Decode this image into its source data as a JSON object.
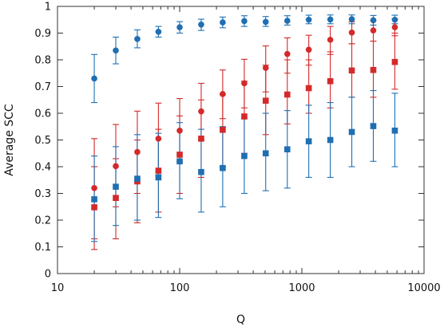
{
  "chart_data": {
    "type": "scatter",
    "xlabel": "Q",
    "ylabel": "Average SCC",
    "xscale": "log",
    "xlim": [
      10,
      10000
    ],
    "ylim": [
      0,
      1
    ],
    "x_ticks": [
      {
        "value": 10,
        "label": "10"
      },
      {
        "value": 100,
        "label": "100"
      },
      {
        "value": 1000,
        "label": "1000"
      },
      {
        "value": 10000,
        "label": "10000"
      }
    ],
    "y_ticks": [
      {
        "value": 0,
        "label": "0"
      },
      {
        "value": 0.1,
        "label": "0.1"
      },
      {
        "value": 0.2,
        "label": "0.2"
      },
      {
        "value": 0.3,
        "label": "0.3"
      },
      {
        "value": 0.4,
        "label": "0.4"
      },
      {
        "value": 0.5,
        "label": "0.5"
      },
      {
        "value": 0.6,
        "label": "0.6"
      },
      {
        "value": 0.7,
        "label": "0.7"
      },
      {
        "value": 0.8,
        "label": "0.8"
      },
      {
        "value": 0.9,
        "label": "0.9"
      },
      {
        "value": 1,
        "label": "1"
      }
    ],
    "grid": false,
    "x": [
      20,
      30,
      45,
      67,
      100,
      150,
      225,
      338,
      506,
      760,
      1139,
      1709,
      2563,
      3844,
      5767
    ],
    "series": [
      {
        "marker": "circle",
        "color": "#1f6fb2",
        "values": [
          0.73,
          0.835,
          0.878,
          0.905,
          0.922,
          0.932,
          0.94,
          0.945,
          0.942,
          0.946,
          0.95,
          0.951,
          0.952,
          0.948,
          0.95
        ],
        "err_low": [
          0.64,
          0.785,
          0.845,
          0.885,
          0.9,
          0.91,
          0.92,
          0.925,
          0.925,
          0.93,
          0.935,
          0.935,
          0.935,
          0.93,
          0.935
        ],
        "err_high": [
          0.82,
          0.885,
          0.912,
          0.925,
          0.943,
          0.952,
          0.96,
          0.965,
          0.962,
          0.965,
          0.967,
          0.968,
          0.968,
          0.966,
          0.967
        ]
      },
      {
        "marker": "circle",
        "color": "#d42a2a",
        "values": [
          0.32,
          0.402,
          0.455,
          0.505,
          0.535,
          0.607,
          0.672,
          0.712,
          0.77,
          0.822,
          0.838,
          0.875,
          0.902,
          0.91,
          0.922
        ],
        "err_low": [
          0.13,
          0.25,
          0.3,
          0.37,
          0.42,
          0.5,
          0.58,
          0.62,
          0.68,
          0.75,
          0.78,
          0.82,
          0.86,
          0.87,
          0.89
        ],
        "err_high": [
          0.505,
          0.558,
          0.608,
          0.638,
          0.655,
          0.712,
          0.762,
          0.802,
          0.852,
          0.882,
          0.892,
          0.925,
          0.942,
          0.947,
          0.953
        ]
      },
      {
        "marker": "square",
        "color": "#d42a2a",
        "values": [
          0.248,
          0.283,
          0.345,
          0.385,
          0.445,
          0.505,
          0.538,
          0.588,
          0.647,
          0.67,
          0.694,
          0.72,
          0.76,
          0.762,
          0.792
        ],
        "err_low": [
          0.09,
          0.13,
          0.19,
          0.23,
          0.3,
          0.36,
          0.4,
          0.45,
          0.52,
          0.56,
          0.6,
          0.62,
          0.66,
          0.66,
          0.69
        ],
        "err_high": [
          0.4,
          0.43,
          0.5,
          0.54,
          0.59,
          0.65,
          0.67,
          0.72,
          0.78,
          0.8,
          0.8,
          0.83,
          0.86,
          0.87,
          0.9
        ]
      },
      {
        "marker": "square",
        "color": "#1f6fb2",
        "values": [
          0.278,
          0.325,
          0.355,
          0.36,
          0.42,
          0.38,
          0.395,
          0.44,
          0.45,
          0.465,
          0.495,
          0.5,
          0.53,
          0.552,
          0.535
        ],
        "err_low": [
          0.12,
          0.18,
          0.2,
          0.21,
          0.28,
          0.23,
          0.25,
          0.3,
          0.31,
          0.32,
          0.36,
          0.36,
          0.4,
          0.42,
          0.4
        ],
        "err_high": [
          0.44,
          0.475,
          0.52,
          0.525,
          0.565,
          0.54,
          0.55,
          0.58,
          0.6,
          0.61,
          0.63,
          0.64,
          0.66,
          0.685,
          0.675
        ]
      }
    ]
  }
}
